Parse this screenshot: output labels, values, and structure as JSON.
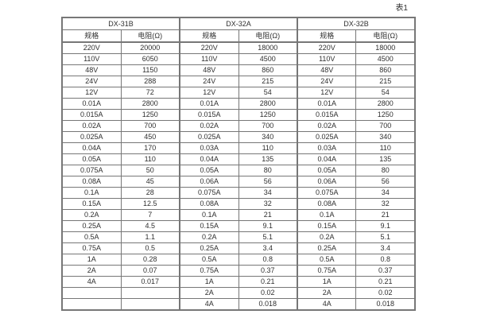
{
  "caption": "表1",
  "table": {
    "groups": [
      {
        "name": "DX-31B",
        "spec_header": "规格",
        "resistance_header": "电阻(Ω)"
      },
      {
        "name": "DX-32A",
        "spec_header": "规格",
        "resistance_header": "电阻(Ω)"
      },
      {
        "name": "DX-32B",
        "spec_header": "规格",
        "resistance_header": "电阻(Ω)"
      }
    ],
    "rows": [
      [
        "220V",
        "20000",
        "220V",
        "18000",
        "220V",
        "18000"
      ],
      [
        "110V",
        "6050",
        "110V",
        "4500",
        "110V",
        "4500"
      ],
      [
        "48V",
        "1150",
        "48V",
        "860",
        "48V",
        "860"
      ],
      [
        "24V",
        "288",
        "24V",
        "215",
        "24V",
        "215"
      ],
      [
        "12V",
        "72",
        "12V",
        "54",
        "12V",
        "54"
      ],
      [
        "0.01A",
        "2800",
        "0.01A",
        "2800",
        "0.01A",
        "2800"
      ],
      [
        "0.015A",
        "1250",
        "0.015A",
        "1250",
        "0.015A",
        "1250"
      ],
      [
        "0.02A",
        "700",
        "0.02A",
        "700",
        "0.02A",
        "700"
      ],
      [
        "0.025A",
        "450",
        "0.025A",
        "340",
        "0.025A",
        "340"
      ],
      [
        "0.04A",
        "170",
        "0.03A",
        "110",
        "0.03A",
        "110"
      ],
      [
        "0.05A",
        "110",
        "0.04A",
        "135",
        "0.04A",
        "135"
      ],
      [
        "0.075A",
        "50",
        "0.05A",
        "80",
        "0.05A",
        "80"
      ],
      [
        "0.08A",
        "45",
        "0.06A",
        "56",
        "0.06A",
        "56"
      ],
      [
        "0.1A",
        "28",
        "0.075A",
        "34",
        "0.075A",
        "34"
      ],
      [
        "0.15A",
        "12.5",
        "0.08A",
        "32",
        "0.08A",
        "32"
      ],
      [
        "0.2A",
        "7",
        "0.1A",
        "21",
        "0.1A",
        "21"
      ],
      [
        "0.25A",
        "4.5",
        "0.15A",
        "9.1",
        "0.15A",
        "9.1"
      ],
      [
        "0.5A",
        "1.1",
        "0.2A",
        "5.1",
        "0.2A",
        "5.1"
      ],
      [
        "0.75A",
        "0.5",
        "0.25A",
        "3.4",
        "0.25A",
        "3.4"
      ],
      [
        "1A",
        "0.28",
        "0.5A",
        "0.8",
        "0.5A",
        "0.8"
      ],
      [
        "2A",
        "0.07",
        "0.75A",
        "0.37",
        "0.75A",
        "0.37"
      ],
      [
        "4A",
        "0.017",
        "1A",
        "0.21",
        "1A",
        "0.21"
      ],
      [
        "",
        "",
        "2A",
        "0.02",
        "2A",
        "0.02"
      ],
      [
        "",
        "",
        "4A",
        "0.018",
        "4A",
        "0.018"
      ]
    ]
  },
  "colors": {
    "border": "#777777",
    "text": "#2f2f2f",
    "background": "#ffffff"
  }
}
